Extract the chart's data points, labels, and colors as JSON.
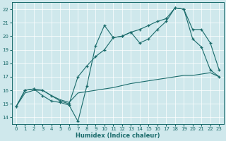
{
  "xlabel": "Humidex (Indice chaleur)",
  "bg_color": "#cfe8ec",
  "line_color": "#1a6b6b",
  "xlim": [
    -0.5,
    23.5
  ],
  "ylim": [
    13.5,
    22.5
  ],
  "yticks": [
    14,
    15,
    16,
    17,
    18,
    19,
    20,
    21,
    22
  ],
  "xticks": [
    0,
    1,
    2,
    3,
    4,
    5,
    6,
    7,
    8,
    9,
    10,
    11,
    12,
    13,
    14,
    15,
    16,
    17,
    18,
    19,
    20,
    21,
    22,
    23
  ],
  "line1_x": [
    0,
    1,
    2,
    3,
    4,
    5,
    6,
    7,
    8,
    9,
    10,
    11,
    12,
    13,
    14,
    15,
    16,
    17,
    18,
    19,
    20,
    21,
    22,
    23
  ],
  "line1_y": [
    14.8,
    16.0,
    16.1,
    15.6,
    15.2,
    15.1,
    14.9,
    13.7,
    16.3,
    19.3,
    20.8,
    19.9,
    20.0,
    20.3,
    19.5,
    19.8,
    20.5,
    21.1,
    22.1,
    22.0,
    19.8,
    19.2,
    17.5,
    17.0
  ],
  "line2_x": [
    0,
    1,
    2,
    3,
    4,
    5,
    6,
    7,
    8,
    9,
    10,
    11,
    12,
    13,
    14,
    15,
    16,
    17,
    18,
    19,
    20,
    21,
    22,
    23
  ],
  "line2_y": [
    14.8,
    16.0,
    16.1,
    16.0,
    15.6,
    15.2,
    15.0,
    17.0,
    17.8,
    18.5,
    19.0,
    19.9,
    20.0,
    20.3,
    20.5,
    20.8,
    21.1,
    21.3,
    22.1,
    22.0,
    20.5,
    20.5,
    19.5,
    17.5
  ],
  "line3_x": [
    0,
    1,
    2,
    3,
    4,
    5,
    6,
    7,
    8,
    9,
    10,
    11,
    12,
    13,
    14,
    15,
    16,
    17,
    18,
    19,
    20,
    21,
    22,
    23
  ],
  "line3_y": [
    14.8,
    15.8,
    16.0,
    16.0,
    15.6,
    15.3,
    15.1,
    15.8,
    15.9,
    16.0,
    16.1,
    16.2,
    16.35,
    16.5,
    16.6,
    16.7,
    16.8,
    16.9,
    17.0,
    17.1,
    17.1,
    17.2,
    17.3,
    17.0
  ]
}
